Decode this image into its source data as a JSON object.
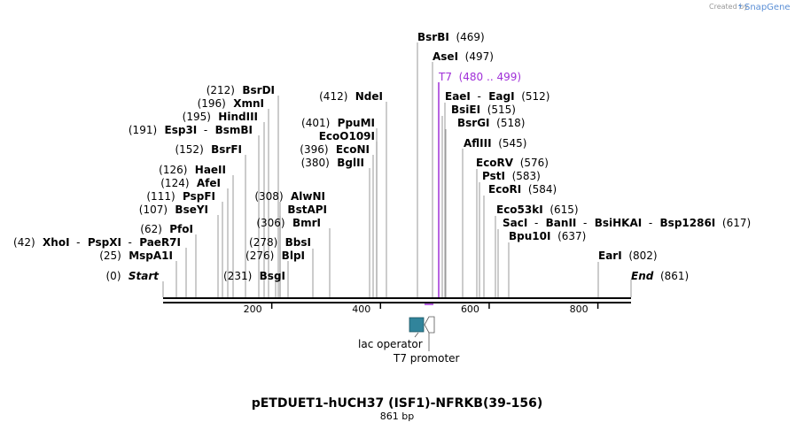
{
  "credit": {
    "prefix": "Created by",
    "brand": "SnapGene"
  },
  "title": "pETDUET1-hUCH37 (ISF1)-NFRKB(39-156)",
  "subtitle": "861 bp",
  "sequence_length": 861,
  "colors": {
    "promoter": "#a030d8",
    "operator": "#31849b",
    "line": "#000000",
    "stem": "#808080"
  },
  "ticks": [
    {
      "value": 200,
      "label": "200"
    },
    {
      "value": 400,
      "label": "400"
    },
    {
      "value": 600,
      "label": "600"
    },
    {
      "value": 800,
      "label": "800"
    }
  ],
  "features": [
    {
      "name": "lac operator",
      "kind": "operator",
      "start": 454,
      "end": 478
    },
    {
      "name": "T7 promoter",
      "kind": "promoter",
      "start": 480,
      "end": 499
    }
  ],
  "sites": [
    {
      "parts": [
        {
          "t": "(469)",
          "b": false
        }
      ],
      "enzymes": [
        {
          "t": "BsrBI",
          "b": true
        }
      ],
      "cut": 469,
      "row": 0,
      "pos_first": false,
      "label": "BsrBI  (469)"
    },
    {
      "parts": [],
      "enzymes": [],
      "cut": 497,
      "row": 1,
      "label": "AseI  (497)"
    },
    {
      "cut": 480,
      "row": 2,
      "promoter": true,
      "label": "T7  (480 .. 499)"
    },
    {
      "cut": 512,
      "row": 3,
      "label": "EaeI  -  EagI  (512)"
    },
    {
      "cut": 515,
      "row": 4,
      "label": "BsiEI  (515)"
    },
    {
      "cut": 518,
      "row": 5,
      "label": "BsrGI  (518)"
    },
    {
      "cut": 545,
      "row": 6,
      "label": "AflIII  (545)"
    },
    {
      "cut": 576,
      "row": 7,
      "label": "EcoRV  (576)"
    },
    {
      "cut": 583,
      "row": 8,
      "label": "PstI  (583)"
    },
    {
      "cut": 584,
      "row": 9,
      "label": "EcoRI  (584)"
    },
    {
      "cut": 615,
      "row": 10,
      "label": "Eco53kI  (615)"
    },
    {
      "cut": 617,
      "row": 11,
      "label": "SacI  -  BanII  -  BsiHKAI  -  Bsp1286I  (617)"
    },
    {
      "cut": 637,
      "row": 12,
      "label": "Bpu10I  (637)"
    },
    {
      "cut": 802,
      "row": 13,
      "label": "EarI  (802)"
    },
    {
      "cut": 861,
      "row": 14,
      "end": true,
      "label": "End  (861)"
    },
    {
      "cut": 412,
      "row": 15,
      "left": true,
      "label": "(412)  NdeI"
    },
    {
      "cut": 401,
      "row": 16,
      "left": true,
      "label": "(401)  PpuMI"
    },
    {
      "cut": 401,
      "row": 17,
      "left": true,
      "label": "EcoO109I"
    },
    {
      "cut": 396,
      "row": 18,
      "left": true,
      "label": "(396)  EcoNI"
    },
    {
      "cut": 380,
      "row": 19,
      "left": true,
      "label": "(380)  BglII"
    },
    {
      "cut": 308,
      "row": 20,
      "left": true,
      "label": "(308)  AlwNI"
    },
    {
      "cut": 308,
      "row": 21,
      "left": true,
      "label": "BstAPI"
    },
    {
      "cut": 306,
      "row": 22,
      "left": true,
      "label": "(306)  BmrI"
    },
    {
      "cut": 278,
      "row": 23,
      "left": true,
      "label": "(278)  BbsI"
    },
    {
      "cut": 276,
      "row": 24,
      "left": true,
      "label": "(276)  BlpI"
    },
    {
      "cut": 231,
      "row": 25,
      "left": true,
      "label": "(231)  BsgI"
    },
    {
      "cut": 212,
      "row": 26,
      "left": true,
      "label": "(212)  BsrDI"
    },
    {
      "cut": 196,
      "row": 27,
      "left": true,
      "label": "(196)  XmnI"
    },
    {
      "cut": 195,
      "row": 28,
      "left": true,
      "label": "(195)  HindIII"
    },
    {
      "cut": 191,
      "row": 29,
      "left": true,
      "label": "(191)  Esp3I  -  BsmBI"
    },
    {
      "cut": 152,
      "row": 30,
      "left": true,
      "label": "(152)  BsrFI"
    },
    {
      "cut": 126,
      "row": 31,
      "left": true,
      "label": "(126)  HaeII"
    },
    {
      "cut": 124,
      "row": 32,
      "left": true,
      "label": "(124)  AfeI"
    },
    {
      "cut": 111,
      "row": 33,
      "left": true,
      "label": "(111)  PspFI"
    },
    {
      "cut": 107,
      "row": 34,
      "left": true,
      "label": "(107)  BseYI"
    },
    {
      "cut": 62,
      "row": 35,
      "left": true,
      "label": "(62)  PfoI"
    },
    {
      "cut": 42,
      "row": 36,
      "left": true,
      "label": "(42)  XhoI  -  PspXI  -  PaeR7I"
    },
    {
      "cut": 25,
      "row": 37,
      "left": true,
      "label": "(25)  MspA1I"
    },
    {
      "cut": 0,
      "row": 38,
      "left": true,
      "start": true,
      "label": "(0)  Start"
    }
  ]
}
